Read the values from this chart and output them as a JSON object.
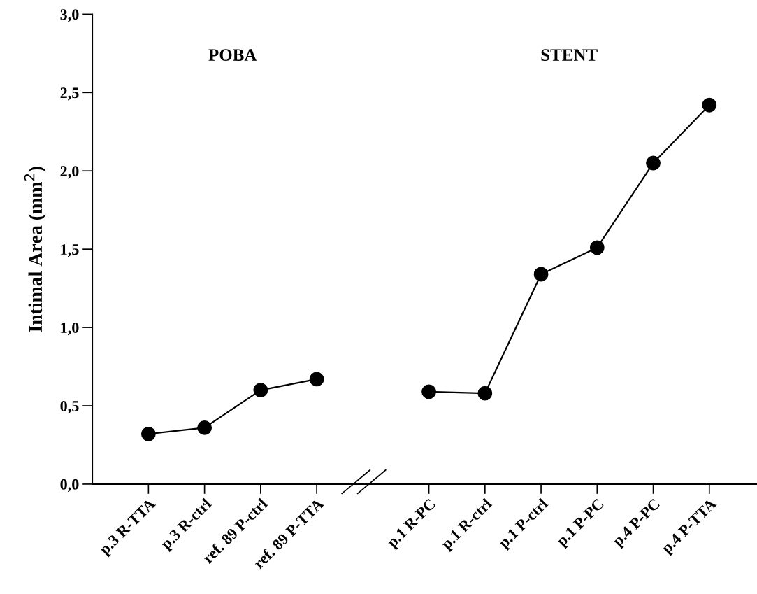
{
  "chart_data": {
    "type": "line",
    "ylabel": "Intimal Area (mm$^{2}$)",
    "annotations": [
      "POBA",
      "STENT"
    ],
    "categories": [
      "p.3 R-TTA",
      "p.3 R-ctrl",
      "ref. 89 P-ctrl",
      "ref. 89 P-TTA",
      null,
      "p.1 R-PC",
      "p.1 R-ctrl",
      "p.1 P-ctrl",
      "p.1 P-PC",
      "p.4 P-PC",
      "p.4 P-TTA"
    ],
    "series": [
      {
        "color": "#000000",
        "values": [
          0.32,
          0.36,
          0.6,
          0.67,
          null,
          0.59,
          0.58,
          1.34,
          1.51,
          2.05,
          2.42
        ]
      }
    ],
    "ylim": [
      0,
      3
    ],
    "yticks": [
      {
        "value": 0,
        "label": "0,0"
      },
      {
        "value": 0.5,
        "label": "0,5"
      },
      {
        "value": 1,
        "label": "1,0"
      },
      {
        "value": 1.5,
        "label": "1,5"
      },
      {
        "value": 2,
        "label": "2,0"
      },
      {
        "value": 2.5,
        "label": "2,5"
      },
      {
        "value": 3,
        "label": "3,0"
      }
    ],
    "marker": "circle",
    "line_style": "solid",
    "grid": false,
    "legend": false
  }
}
